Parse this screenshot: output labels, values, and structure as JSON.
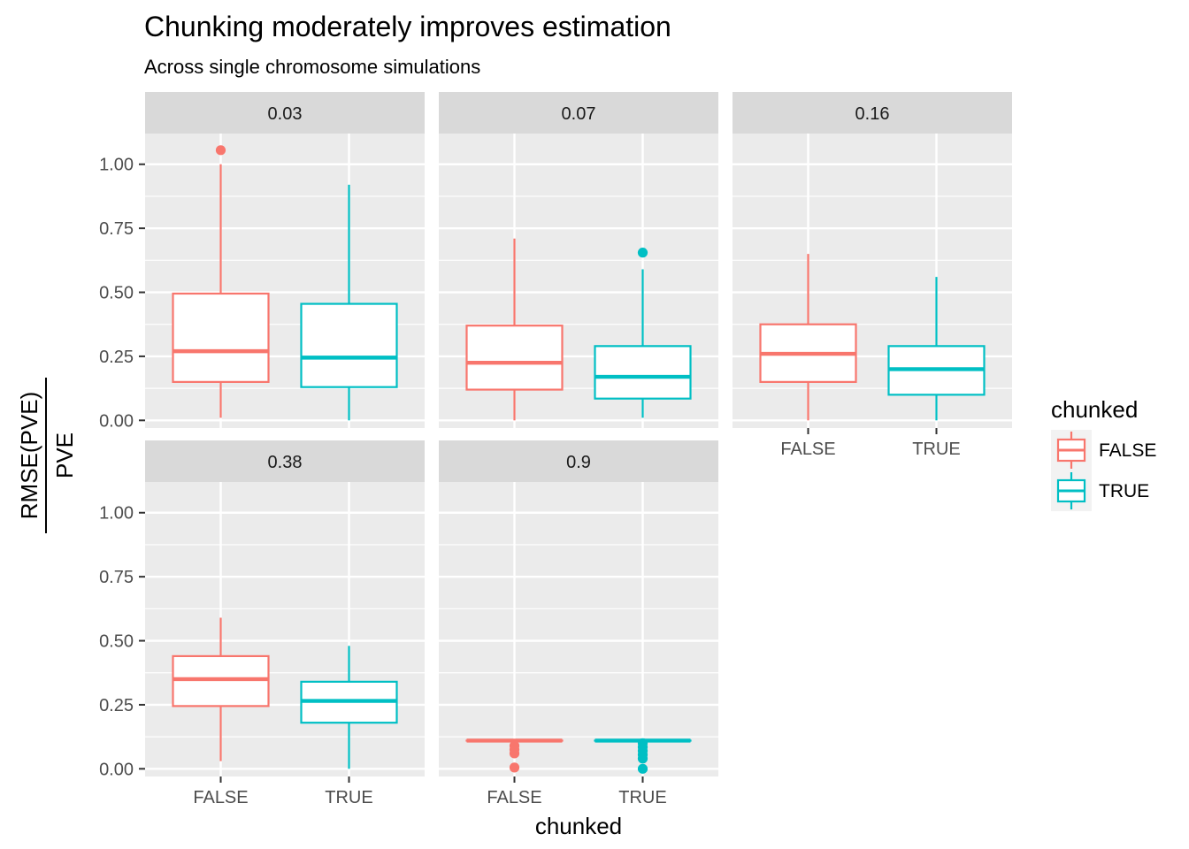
{
  "chart_data": {
    "type": "boxplot",
    "title": "Chunking moderately improves estimation",
    "subtitle": "Across single chromosome simulations",
    "xlabel": "chunked",
    "ylabel_numerator": "RMSE(PVE)",
    "ylabel_denominator": "PVE",
    "categories": [
      "FALSE",
      "TRUE"
    ],
    "ylim": [
      -0.03,
      1.12
    ],
    "yticks": [
      0.0,
      0.25,
      0.5,
      0.75,
      1.0
    ],
    "ytick_labels": [
      "0.00",
      "0.25",
      "0.50",
      "0.75",
      "1.00"
    ],
    "grid": true,
    "legend": {
      "title": "chunked",
      "placement": "right",
      "entries": [
        {
          "label": "FALSE",
          "color": "#F8766D"
        },
        {
          "label": "TRUE",
          "color": "#00BFC4"
        }
      ]
    },
    "panels": [
      {
        "label": "0.03",
        "boxes": [
          {
            "category": "FALSE",
            "min": 0.01,
            "q1": 0.15,
            "median": 0.27,
            "q3": 0.495,
            "max": 1.0,
            "outliers": [
              1.055
            ]
          },
          {
            "category": "TRUE",
            "min": 0.0,
            "q1": 0.13,
            "median": 0.245,
            "q3": 0.455,
            "max": 0.92,
            "outliers": []
          }
        ]
      },
      {
        "label": "0.07",
        "boxes": [
          {
            "category": "FALSE",
            "min": 0.0,
            "q1": 0.12,
            "median": 0.225,
            "q3": 0.37,
            "max": 0.71,
            "outliers": []
          },
          {
            "category": "TRUE",
            "min": 0.01,
            "q1": 0.085,
            "median": 0.17,
            "q3": 0.29,
            "max": 0.59,
            "outliers": [
              0.655
            ]
          }
        ]
      },
      {
        "label": "0.16",
        "boxes": [
          {
            "category": "FALSE",
            "min": 0.0,
            "q1": 0.15,
            "median": 0.26,
            "q3": 0.375,
            "max": 0.65,
            "outliers": []
          },
          {
            "category": "TRUE",
            "min": 0.0,
            "q1": 0.1,
            "median": 0.2,
            "q3": 0.29,
            "max": 0.56,
            "outliers": []
          }
        ]
      },
      {
        "label": "0.38",
        "boxes": [
          {
            "category": "FALSE",
            "min": 0.03,
            "q1": 0.245,
            "median": 0.35,
            "q3": 0.44,
            "max": 0.59,
            "outliers": []
          },
          {
            "category": "TRUE",
            "min": 0.0,
            "q1": 0.18,
            "median": 0.265,
            "q3": 0.34,
            "max": 0.48,
            "outliers": []
          }
        ]
      },
      {
        "label": "0.9",
        "boxes": [
          {
            "category": "FALSE",
            "min": 0.11,
            "q1": 0.11,
            "median": 0.11,
            "q3": 0.11,
            "max": 0.11,
            "outliers": [
              0.09,
              0.075,
              0.06,
              0.005
            ]
          },
          {
            "category": "TRUE",
            "min": 0.11,
            "q1": 0.11,
            "median": 0.11,
            "q3": 0.11,
            "max": 0.11,
            "outliers": [
              0.1,
              0.085,
              0.07,
              0.055,
              0.04,
              0.0
            ]
          }
        ]
      }
    ]
  }
}
